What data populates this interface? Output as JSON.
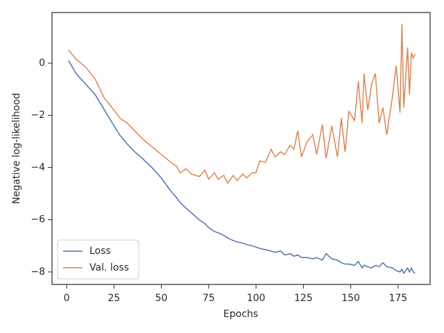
{
  "chart_data": {
    "type": "line",
    "x_label": "Epochs",
    "y_label": "Negative log-likelihood",
    "x": [
      1,
      5,
      10,
      15,
      20,
      25,
      28,
      32,
      36,
      40,
      45,
      50,
      55,
      58,
      60,
      63,
      66,
      70,
      73,
      75,
      78,
      80,
      83,
      85,
      88,
      90,
      93,
      95,
      98,
      100,
      102,
      105,
      108,
      110,
      113,
      115,
      118,
      120,
      122,
      124,
      127,
      130,
      132,
      135,
      137,
      140,
      143,
      145,
      147,
      149,
      152,
      154,
      156,
      157,
      159,
      161,
      163,
      165,
      167,
      169,
      172,
      174,
      176,
      177,
      178,
      180,
      181,
      182,
      183,
      184
    ],
    "series": [
      {
        "name": "Loss",
        "color": "#4c72b0",
        "values": [
          0.1,
          -0.4,
          -0.8,
          -1.2,
          -1.8,
          -2.4,
          -2.75,
          -3.1,
          -3.4,
          -3.65,
          -4.0,
          -4.4,
          -4.9,
          -5.15,
          -5.35,
          -5.55,
          -5.75,
          -6.0,
          -6.15,
          -6.3,
          -6.45,
          -6.5,
          -6.6,
          -6.7,
          -6.8,
          -6.85,
          -6.9,
          -6.95,
          -7.0,
          -7.05,
          -7.1,
          -7.15,
          -7.2,
          -7.25,
          -7.2,
          -7.35,
          -7.3,
          -7.4,
          -7.35,
          -7.45,
          -7.45,
          -7.5,
          -7.45,
          -7.55,
          -7.3,
          -7.5,
          -7.55,
          -7.65,
          -7.7,
          -7.7,
          -7.75,
          -7.6,
          -7.85,
          -7.75,
          -7.8,
          -7.85,
          -7.75,
          -7.8,
          -7.65,
          -7.8,
          -7.85,
          -7.95,
          -8.0,
          -7.9,
          -8.05,
          -7.85,
          -8.0,
          -7.85,
          -8.0,
          -8.05
        ]
      },
      {
        "name": "Val. loss",
        "color": "#dd8452",
        "values": [
          0.5,
          0.15,
          -0.15,
          -0.6,
          -1.35,
          -1.8,
          -2.1,
          -2.3,
          -2.6,
          -2.9,
          -3.2,
          -3.5,
          -3.8,
          -3.95,
          -4.2,
          -4.05,
          -4.25,
          -4.35,
          -4.1,
          -4.45,
          -4.2,
          -4.45,
          -4.3,
          -4.6,
          -4.3,
          -4.5,
          -4.25,
          -4.4,
          -4.2,
          -4.2,
          -3.75,
          -3.8,
          -3.3,
          -3.6,
          -3.4,
          -3.5,
          -3.15,
          -3.3,
          -2.6,
          -3.6,
          -3.0,
          -2.75,
          -3.5,
          -2.35,
          -3.65,
          -2.4,
          -3.6,
          -2.1,
          -3.4,
          -1.85,
          -2.2,
          -0.7,
          -2.3,
          -0.4,
          -1.8,
          -0.8,
          -0.4,
          -2.3,
          -1.7,
          -2.75,
          -1.3,
          -0.1,
          -1.9,
          1.5,
          -1.7,
          0.6,
          -1.2,
          0.4,
          0.2,
          0.35
        ]
      }
    ],
    "xlim": [
      -7.7,
      191.9
    ],
    "ylim": [
      -8.48,
      1.94
    ],
    "xticks": [
      0,
      25,
      50,
      75,
      100,
      125,
      150,
      175
    ],
    "yticks": [
      {
        "value": -8,
        "label": "−8"
      },
      {
        "value": -6,
        "label": "−6"
      },
      {
        "value": -4,
        "label": "−4"
      },
      {
        "value": -2,
        "label": "−2"
      },
      0
    ],
    "legend": "lower left"
  }
}
